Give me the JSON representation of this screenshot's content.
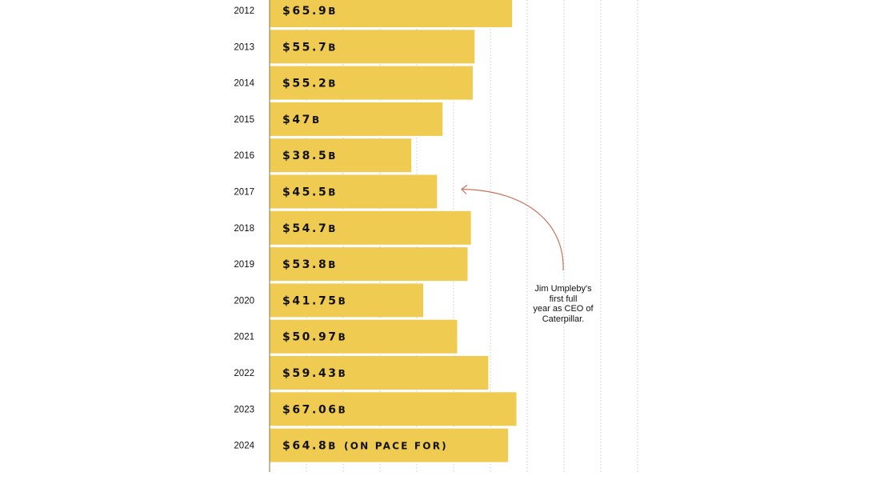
{
  "chart_data": {
    "type": "bar",
    "orientation": "horizontal",
    "categories": [
      "2012",
      "2013",
      "2014",
      "2015",
      "2016",
      "2017",
      "2018",
      "2019",
      "2020",
      "2021",
      "2022",
      "2023",
      "2024"
    ],
    "values": [
      65.9,
      55.7,
      55.2,
      47,
      38.5,
      45.5,
      54.7,
      53.8,
      41.75,
      50.97,
      59.43,
      67.06,
      64.8
    ],
    "value_labels": [
      {
        "amount": "$65.9",
        "suffix": "B",
        "note": ""
      },
      {
        "amount": "$55.7",
        "suffix": "B",
        "note": ""
      },
      {
        "amount": "$55.2",
        "suffix": "B",
        "note": ""
      },
      {
        "amount": "$47",
        "suffix": "B",
        "note": ""
      },
      {
        "amount": "$38.5",
        "suffix": "B",
        "note": ""
      },
      {
        "amount": "$45.5",
        "suffix": "B",
        "note": ""
      },
      {
        "amount": "$54.7",
        "suffix": "B",
        "note": ""
      },
      {
        "amount": "$53.8",
        "suffix": "B",
        "note": ""
      },
      {
        "amount": "$41.75",
        "suffix": "B",
        "note": ""
      },
      {
        "amount": "$50.97",
        "suffix": "B",
        "note": ""
      },
      {
        "amount": "$59.43",
        "suffix": "B",
        "note": ""
      },
      {
        "amount": "$67.06",
        "suffix": "B",
        "note": ""
      },
      {
        "amount": "$64.8",
        "suffix": "B",
        "note": "(ON PACE FOR)"
      }
    ],
    "xlim": [
      0,
      100
    ],
    "grid_step": 10,
    "grid": true,
    "bar_color": "#EFCB52",
    "axis_color": "#9a8a55",
    "annotation": {
      "category": "2017",
      "lines": [
        "Jim Umpleby's",
        "first full",
        "year as CEO of",
        "Caterpillar."
      ],
      "arrow_color": "#c8735a"
    }
  }
}
